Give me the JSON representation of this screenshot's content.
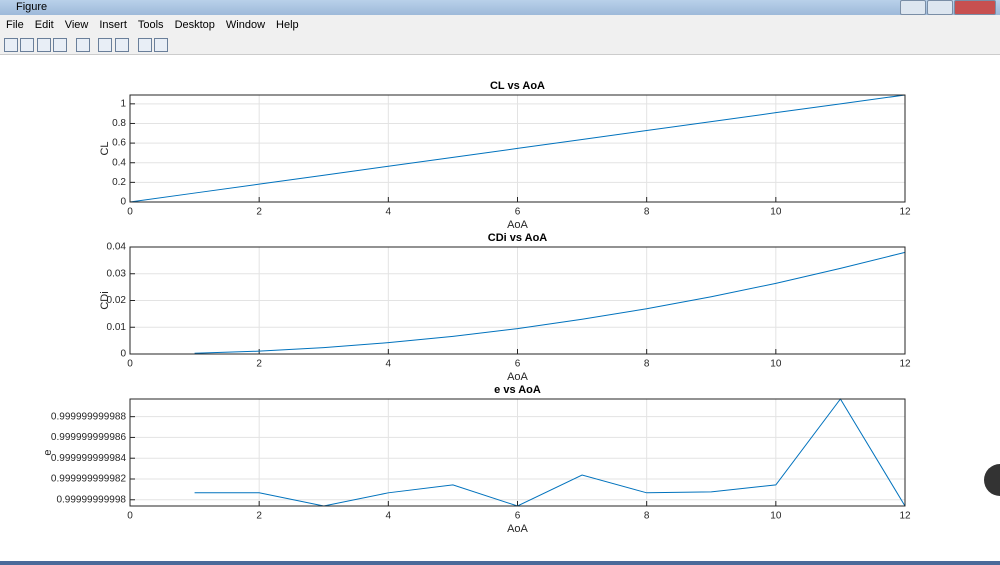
{
  "window": {
    "title": "Figure",
    "menu": [
      "File",
      "Edit",
      "View",
      "Insert",
      "Tools",
      "Desktop",
      "Window",
      "Help"
    ]
  },
  "chart_data": [
    {
      "type": "line",
      "title": "CL vs AoA",
      "x_label": "AoA",
      "y_label": "CL",
      "x": [
        0,
        1,
        2,
        3,
        4,
        5,
        6,
        7,
        8,
        9,
        10,
        11,
        12
      ],
      "values": [
        0,
        0.091,
        0.182,
        0.273,
        0.364,
        0.455,
        0.546,
        0.637,
        0.728,
        0.819,
        0.91,
        1.0,
        1.09
      ],
      "color": "#0072bd",
      "xlim": [
        0,
        12
      ],
      "xticks": [
        0,
        2,
        4,
        6,
        8,
        10,
        12
      ],
      "ylim": [
        0,
        1.09
      ],
      "yticks": [
        0,
        0.2,
        0.4,
        0.6,
        0.8,
        1
      ],
      "grid": true
    },
    {
      "type": "line",
      "title": "CDi vs AoA",
      "x_label": "AoA",
      "y_label": "CDi",
      "x": [
        1,
        2,
        3,
        4,
        5,
        6,
        7,
        8,
        9,
        10,
        11,
        12
      ],
      "values": [
        0.00026,
        0.00106,
        0.00238,
        0.00423,
        0.0066,
        0.0095,
        0.013,
        0.0169,
        0.0214,
        0.0264,
        0.032,
        0.038
      ],
      "color": "#0072bd",
      "xlim": [
        0,
        12
      ],
      "xticks": [
        0,
        2,
        4,
        6,
        8,
        10,
        12
      ],
      "ylim": [
        0,
        0.04
      ],
      "yticks": [
        0,
        0.01,
        0.02,
        0.03,
        0.04
      ],
      "grid": true
    },
    {
      "type": "line",
      "title": "e vs AoA",
      "x_label": "AoA",
      "y_label": "e",
      "x": [
        1,
        2,
        3,
        4,
        5,
        6,
        7,
        8,
        9,
        10,
        11,
        12
      ],
      "values": [
        0.99999999998067,
        0.99999999998067,
        0.9999999999794,
        0.99999999998067,
        0.99999999998143,
        0.9999999999794,
        0.99999999998238,
        0.99999999998067,
        0.99999999998076,
        0.99999999998143,
        0.9999999999897,
        0.9999999999794
      ],
      "color": "#0072bd",
      "xlim": [
        0,
        12
      ],
      "xticks": [
        0,
        2,
        4,
        6,
        8,
        10,
        12
      ],
      "ylim": [
        0.9999999999794,
        0.9999999999897
      ],
      "yticks": [
        {
          "value": 0.99999999998,
          "label": "0.99999999998"
        },
        {
          "value": 0.999999999982,
          "label": "0.999999999982"
        },
        {
          "value": 0.999999999984,
          "label": "0.999999999984"
        },
        {
          "value": 0.999999999986,
          "label": "0.999999999986"
        },
        {
          "value": 0.999999999988,
          "label": "0.999999999988"
        }
      ],
      "grid": true
    }
  ]
}
